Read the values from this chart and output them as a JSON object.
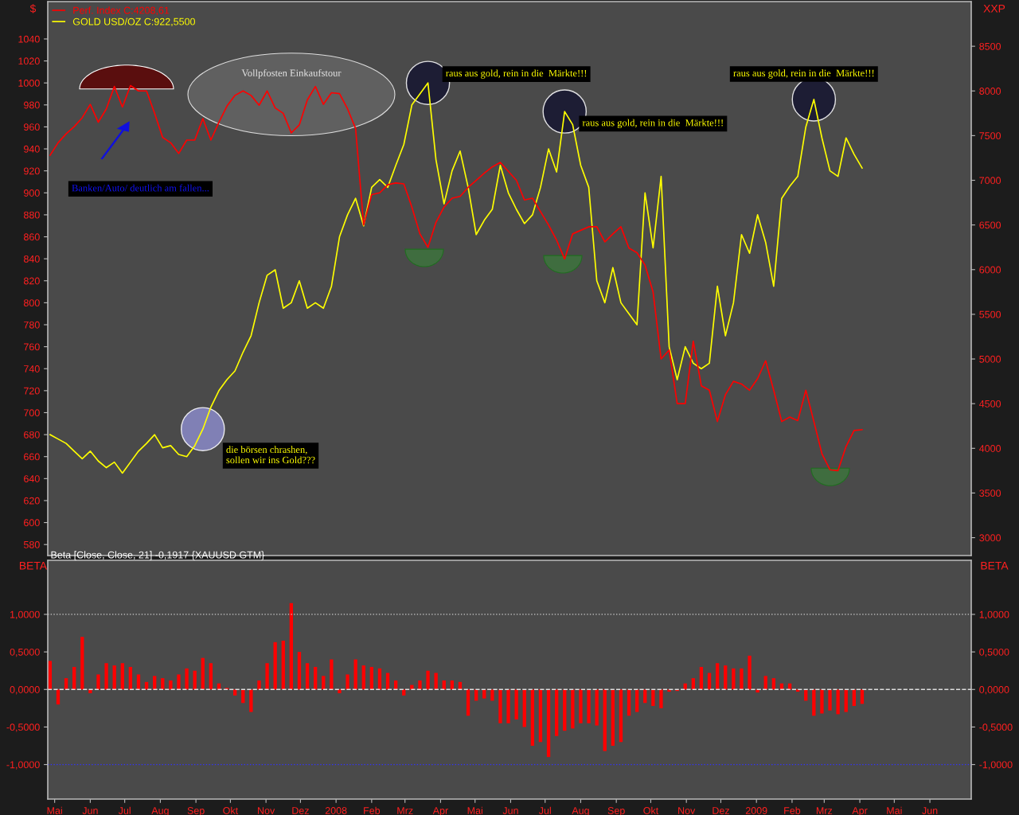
{
  "chart_data": [
    {
      "type": "line",
      "ylabel": "$",
      "y2label": "XXP",
      "x": [
        "2007-04-27",
        "2007-05-04",
        "2007-05-11",
        "2007-05-18",
        "2007-05-25",
        "2007-06-01",
        "2007-06-08",
        "2007-06-15",
        "2007-06-22",
        "2007-06-29",
        "2007-07-06",
        "2007-07-13",
        "2007-07-20",
        "2007-07-27",
        "2007-08-03",
        "2007-08-10",
        "2007-08-17",
        "2007-08-24",
        "2007-08-31",
        "2007-09-07",
        "2007-09-14",
        "2007-09-21",
        "2007-09-28",
        "2007-10-05",
        "2007-10-12",
        "2007-10-19",
        "2007-10-26",
        "2007-11-02",
        "2007-11-09",
        "2007-11-16",
        "2007-11-23",
        "2007-11-30",
        "2007-12-07",
        "2007-12-14",
        "2007-12-21",
        "2007-12-28",
        "2008-01-04",
        "2008-01-11",
        "2008-01-18",
        "2008-01-25",
        "2008-02-01",
        "2008-02-08",
        "2008-02-15",
        "2008-02-22",
        "2008-02-29",
        "2008-03-07",
        "2008-03-14",
        "2008-03-21",
        "2008-03-28",
        "2008-04-04",
        "2008-04-11",
        "2008-04-18",
        "2008-04-25",
        "2008-05-02",
        "2008-05-09",
        "2008-05-16",
        "2008-05-23",
        "2008-05-30",
        "2008-06-06",
        "2008-06-13",
        "2008-06-20",
        "2008-06-27",
        "2008-07-04",
        "2008-07-11",
        "2008-07-18",
        "2008-07-25",
        "2008-08-01",
        "2008-08-08",
        "2008-08-15",
        "2008-08-22",
        "2008-08-29",
        "2008-09-05",
        "2008-09-12",
        "2008-09-19",
        "2008-09-26",
        "2008-10-03",
        "2008-10-10",
        "2008-10-17",
        "2008-10-24",
        "2008-10-31",
        "2008-11-07",
        "2008-11-14",
        "2008-11-21",
        "2008-11-28",
        "2008-12-05",
        "2008-12-12",
        "2008-12-19",
        "2008-12-26",
        "2009-01-02",
        "2009-01-09",
        "2009-01-16",
        "2009-01-23",
        "2009-01-30",
        "2009-02-06",
        "2009-02-13",
        "2009-02-20",
        "2009-02-27",
        "2009-03-06",
        "2009-03-13",
        "2009-03-20",
        "2009-03-27",
        "2009-04-03"
      ],
      "series": [
        {
          "name": "Perf. Index C:4208,61",
          "color": "#ff0000",
          "axis": "y2",
          "values": [
            7280,
            7420,
            7520,
            7600,
            7700,
            7850,
            7650,
            7800,
            8050,
            7820,
            8060,
            8000,
            8000,
            7750,
            7480,
            7420,
            7300,
            7450,
            7450,
            7690,
            7450,
            7650,
            7830,
            7950,
            8000,
            7950,
            7840,
            8000,
            7810,
            7750,
            7530,
            7620,
            7900,
            8050,
            7850,
            7980,
            7970,
            7800,
            7580,
            6500,
            6840,
            6860,
            6950,
            6970,
            6960,
            6700,
            6400,
            6250,
            6530,
            6700,
            6800,
            6820,
            6920,
            7000,
            7080,
            7150,
            7200,
            7100,
            7000,
            6780,
            6800,
            6650,
            6500,
            6330,
            6120,
            6400,
            6440,
            6480,
            6480,
            6310,
            6400,
            6480,
            6240,
            6190,
            6050,
            5750,
            5000,
            5100,
            4500,
            4500,
            5200,
            4700,
            4650,
            4300,
            4600,
            4750,
            4720,
            4650,
            4780,
            4980,
            4650,
            4300,
            4350,
            4310,
            4650,
            4300,
            3940,
            3760,
            3750,
            4020,
            4200,
            4208.61
          ]
        },
        {
          "name": "GOLD USD/OZ C:922,5500",
          "color": "#ffff00",
          "values": [
            680,
            676,
            672,
            665,
            658,
            665,
            656,
            650,
            655,
            645,
            655,
            665,
            672,
            680,
            668,
            670,
            662,
            660,
            670,
            685,
            705,
            720,
            730,
            738,
            755,
            770,
            800,
            825,
            830,
            795,
            800,
            820,
            795,
            800,
            795,
            815,
            860,
            880,
            895,
            870,
            905,
            912,
            905,
            925,
            944,
            980,
            990,
            1000,
            930,
            890,
            920,
            938,
            905,
            862,
            875,
            885,
            925,
            900,
            885,
            872,
            880,
            905,
            940,
            919,
            974,
            962,
            925,
            905,
            820,
            800,
            832,
            800,
            790,
            780,
            900,
            850,
            915,
            760,
            730,
            760,
            745,
            740,
            745,
            815,
            770,
            800,
            862,
            845,
            880,
            855,
            815,
            895,
            906,
            915,
            960,
            985,
            950,
            920,
            915,
            950,
            935,
            922.55
          ]
        }
      ],
      "xlim": [
        "2007-04-25",
        "2009-07-07"
      ],
      "ylim": [
        570,
        1074
      ],
      "yticks": [
        580,
        600,
        620,
        640,
        660,
        680,
        700,
        720,
        740,
        760,
        780,
        800,
        820,
        840,
        860,
        880,
        900,
        920,
        940,
        960,
        980,
        1000,
        1020,
        1040
      ],
      "y2lim": [
        2800,
        9000
      ],
      "y2ticks": [
        3000,
        3500,
        4000,
        4500,
        5000,
        5500,
        6000,
        6500,
        7000,
        7500,
        8000,
        8500
      ],
      "tick_labels": "y",
      "grid": false,
      "legend": "top left",
      "line_style": "solid",
      "marker": "none",
      "annotations": [
        {
          "text": "die börsen chrashen,\nsollen wir ins Gold???",
          "x": "2007-09-07",
          "y": 685
        },
        {
          "text": "raus aus gold, rein in die  Märkte!!!",
          "x": "2008-03-21",
          "y": 1000
        },
        {
          "text": "raus aus gold, rein in die  Märkte!!!",
          "x": "2008-07-18",
          "y": 974
        },
        {
          "text": "raus aus gold, rein in die  Märkte!!!",
          "x": "2009-02-20",
          "y": 985
        },
        "Vollpfosten Einkaufstour",
        "Banken/Auto/ deutlich am fallen..."
      ]
    },
    {
      "type": "bar",
      "title": "Beta [Close, Close, 21] -0,1917 {XAUUSD GTM}",
      "ylabel": "BETA",
      "y2label": "BETA",
      "x": [
        "2007-04-27",
        "2007-05-04",
        "2007-05-11",
        "2007-05-18",
        "2007-05-25",
        "2007-06-01",
        "2007-06-08",
        "2007-06-15",
        "2007-06-22",
        "2007-06-29",
        "2007-07-06",
        "2007-07-13",
        "2007-07-20",
        "2007-07-27",
        "2007-08-03",
        "2007-08-10",
        "2007-08-17",
        "2007-08-24",
        "2007-08-31",
        "2007-09-07",
        "2007-09-14",
        "2007-09-21",
        "2007-09-28",
        "2007-10-05",
        "2007-10-12",
        "2007-10-19",
        "2007-10-26",
        "2007-11-02",
        "2007-11-09",
        "2007-11-16",
        "2007-11-23",
        "2007-11-30",
        "2007-12-07",
        "2007-12-14",
        "2007-12-21",
        "2007-12-28",
        "2008-01-04",
        "2008-01-11",
        "2008-01-18",
        "2008-01-25",
        "2008-02-01",
        "2008-02-08",
        "2008-02-15",
        "2008-02-22",
        "2008-02-29",
        "2008-03-07",
        "2008-03-14",
        "2008-03-21",
        "2008-03-28",
        "2008-04-04",
        "2008-04-11",
        "2008-04-18",
        "2008-04-25",
        "2008-05-02",
        "2008-05-09",
        "2008-05-16",
        "2008-05-23",
        "2008-05-30",
        "2008-06-06",
        "2008-06-13",
        "2008-06-20",
        "2008-06-27",
        "2008-07-04",
        "2008-07-11",
        "2008-07-18",
        "2008-07-25",
        "2008-08-01",
        "2008-08-08",
        "2008-08-15",
        "2008-08-22",
        "2008-08-29",
        "2008-09-05",
        "2008-09-12",
        "2008-09-19",
        "2008-09-26",
        "2008-10-03",
        "2008-10-10",
        "2008-10-17",
        "2008-10-24",
        "2008-10-31",
        "2008-11-07",
        "2008-11-14",
        "2008-11-21",
        "2008-11-28",
        "2008-12-05",
        "2008-12-12",
        "2008-12-19",
        "2008-12-26",
        "2009-01-02",
        "2009-01-09",
        "2009-01-16",
        "2009-01-23",
        "2009-01-30",
        "2009-02-06",
        "2009-02-13",
        "2009-02-20",
        "2009-02-27",
        "2009-03-06",
        "2009-03-13",
        "2009-03-20",
        "2009-03-27",
        "2009-04-03"
      ],
      "color": "#ff0000",
      "values": [
        0.38,
        -0.2,
        0.15,
        0.3,
        0.7,
        -0.05,
        0.2,
        0.35,
        0.32,
        0.35,
        0.3,
        0.2,
        0.1,
        0.18,
        0.15,
        0.12,
        0.2,
        0.28,
        0.25,
        0.42,
        0.35,
        0.08,
        0.02,
        -0.08,
        -0.18,
        -0.3,
        0.12,
        0.35,
        0.63,
        0.65,
        1.15,
        0.5,
        0.35,
        0.3,
        0.18,
        0.4,
        -0.05,
        0.2,
        0.4,
        0.32,
        0.3,
        0.28,
        0.22,
        0.12,
        -0.08,
        0.06,
        0.12,
        0.25,
        0.22,
        0.12,
        0.12,
        0.1,
        -0.35,
        -0.15,
        -0.12,
        -0.15,
        -0.45,
        -0.45,
        -0.4,
        -0.5,
        -0.75,
        -0.7,
        -0.9,
        -0.62,
        -0.55,
        -0.52,
        -0.45,
        -0.45,
        -0.48,
        -0.82,
        -0.75,
        -0.7,
        -0.35,
        -0.3,
        -0.18,
        -0.22,
        -0.25,
        -0.03,
        -0.02,
        0.08,
        0.15,
        0.3,
        0.22,
        0.35,
        0.32,
        0.28,
        0.28,
        0.45,
        -0.04,
        0.18,
        0.15,
        0.08,
        0.08,
        -0.03,
        -0.15,
        -0.35,
        -0.32,
        -0.28,
        -0.33,
        -0.3,
        -0.22,
        -0.1917
      ],
      "xlim": [
        "2007-04-25",
        "2009-07-07"
      ],
      "xticks": [
        {
          "value": "2007-05",
          "label": "Mai"
        },
        {
          "value": "2007-06",
          "label": "Jun"
        },
        {
          "value": "2007-07",
          "label": "Jul"
        },
        {
          "value": "2007-08",
          "label": "Aug"
        },
        {
          "value": "2007-09",
          "label": "Sep"
        },
        {
          "value": "2007-10",
          "label": "Okt"
        },
        {
          "value": "2007-11",
          "label": "Nov"
        },
        {
          "value": "2007-12",
          "label": "Dez"
        },
        {
          "value": "2008-01",
          "label": "2008"
        },
        {
          "value": "2008-02",
          "label": "Feb"
        },
        {
          "value": "2008-03",
          "label": "Mrz"
        },
        {
          "value": "2008-04",
          "label": "Apr"
        },
        {
          "value": "2008-05",
          "label": "Mai"
        },
        {
          "value": "2008-06",
          "label": "Jun"
        },
        {
          "value": "2008-07",
          "label": "Jul"
        },
        {
          "value": "2008-08",
          "label": "Aug"
        },
        {
          "value": "2008-09",
          "label": "Sep"
        },
        {
          "value": "2008-10",
          "label": "Okt"
        },
        {
          "value": "2008-11",
          "label": "Nov"
        },
        {
          "value": "2008-12",
          "label": "Dez"
        },
        {
          "value": "2009-01",
          "label": "2009"
        },
        {
          "value": "2009-02",
          "label": "Feb"
        },
        {
          "value": "2009-03",
          "label": "Mrz"
        },
        {
          "value": "2009-04",
          "label": "Apr"
        },
        {
          "value": "2009-05",
          "label": "Mai"
        },
        {
          "value": "2009-06",
          "label": "Jun"
        }
      ],
      "ylim": [
        -1.46,
        1.72
      ],
      "yticks": [
        {
          "value": -1,
          "label": "-1,0000"
        },
        {
          "value": -0.5,
          "label": "-0,5000"
        },
        {
          "value": 0,
          "label": "0,0000"
        },
        {
          "value": 0.5,
          "label": "0,5000"
        },
        {
          "value": 1,
          "label": "1,0000"
        }
      ],
      "y2lim": [
        -1.46,
        1.72
      ],
      "y2ticks": [
        {
          "value": -1,
          "label": "-1,0000"
        },
        {
          "value": -0.5,
          "label": "-0,5000"
        },
        {
          "value": 0,
          "label": "0,0000"
        },
        {
          "value": 0.5,
          "label": "0,5000"
        },
        {
          "value": 1,
          "label": "1,0000"
        }
      ],
      "grid": false,
      "ref_lines": [
        {
          "axis": "y",
          "value": 1,
          "color": "#cccccc",
          "line_style": "dotted"
        },
        {
          "axis": "y",
          "value": 0,
          "color": "#dddddd",
          "line_style": "dashed"
        },
        {
          "axis": "y",
          "value": -1,
          "color": "#3333ff",
          "line_style": "dotted"
        }
      ]
    }
  ]
}
